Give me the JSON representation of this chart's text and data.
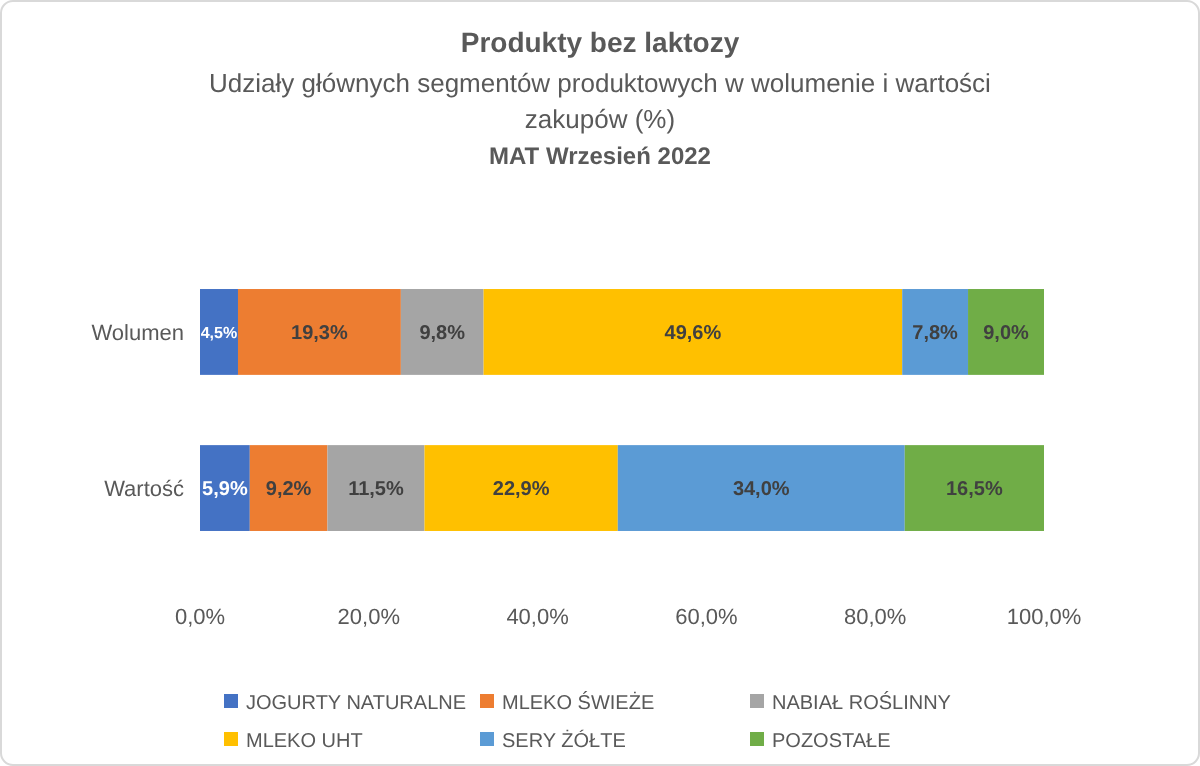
{
  "chart_data": {
    "type": "bar",
    "orientation": "horizontal",
    "stacked": true,
    "title": "Produkty bez laktozy",
    "subtitle": "Udziały głównych segmentów produktowych w wolumenie i wartości zakupów (%)",
    "annotations": [
      "MAT Wrzesień 2022"
    ],
    "categories": [
      "Wolumen",
      "Wartość"
    ],
    "xlim": [
      0,
      100
    ],
    "xticks": [
      {
        "value": 0,
        "label": "0,0%"
      },
      {
        "value": 20,
        "label": "20,0%"
      },
      {
        "value": 40,
        "label": "40,0%"
      },
      {
        "value": 60,
        "label": "60,0%"
      },
      {
        "value": 80,
        "label": "80,0%"
      },
      {
        "value": 100,
        "label": "100,0%"
      }
    ],
    "legend": "bottom",
    "grid": false,
    "series": [
      {
        "name": "JOGURTY NATURALNE",
        "color": "#4472c4",
        "values": [
          4.5,
          5.9
        ],
        "value_labels": [
          "4,5%",
          "5,9%"
        ]
      },
      {
        "name": "MLEKO ŚWIEŻE",
        "color": "#ed7d31",
        "values": [
          19.3,
          9.2
        ],
        "value_labels": [
          "19,3%",
          "9,2%"
        ]
      },
      {
        "name": "NABIAŁ ROŚLINNY",
        "color": "#a5a5a5",
        "values": [
          9.8,
          11.5
        ],
        "value_labels": [
          "9,8%",
          "11,5%"
        ]
      },
      {
        "name": "MLEKO UHT",
        "color": "#ffc000",
        "values": [
          49.6,
          22.9
        ],
        "value_labels": [
          "49,6%",
          "22,9%"
        ]
      },
      {
        "name": "SERY ŻÓŁTE",
        "color": "#5b9bd5",
        "values": [
          7.8,
          34.0
        ],
        "value_labels": [
          "7,8%",
          "34,0%"
        ]
      },
      {
        "name": "POZOSTAŁE",
        "color": "#70ad47",
        "values": [
          9.0,
          16.5
        ],
        "value_labels": [
          "9,0%",
          "16,5%"
        ]
      }
    ]
  }
}
